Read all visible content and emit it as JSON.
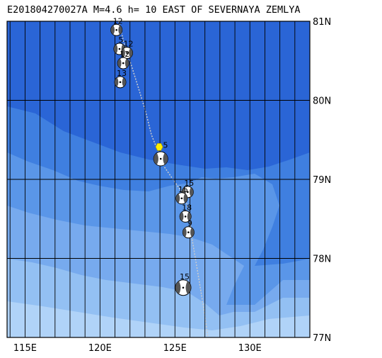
{
  "title": "E201804270027A M=4.6 h= 10 EAST OF SEVERNAYA ZEMLYA",
  "map": {
    "lon_range": [
      113.8,
      134.0
    ],
    "lat_range": [
      77.0,
      81.0
    ],
    "lat_labels": [
      {
        "value": 81,
        "text": "81N"
      },
      {
        "value": 80,
        "text": "80N"
      },
      {
        "value": 79,
        "text": "79N"
      },
      {
        "value": 78,
        "text": "78N"
      },
      {
        "value": 77,
        "text": "77N"
      }
    ],
    "lon_labels": [
      {
        "value": 115,
        "text": "115E"
      },
      {
        "value": 120,
        "text": "120E"
      },
      {
        "value": 125,
        "text": "125E"
      },
      {
        "value": 130,
        "text": "130E"
      }
    ],
    "colors": {
      "deep": "#2a65d6",
      "mid": "#3f7fe0",
      "shelf": "#5a96e8",
      "shallow1": "#77aaee",
      "shallow2": "#93c0f3",
      "coast": "#b0d3f8",
      "grid": "#000000",
      "event": "#ffee00",
      "ridge": "#cccccc"
    },
    "event": {
      "lon": 123.95,
      "lat": 79.41,
      "label": "5"
    },
    "mechanisms": [
      {
        "lon": 121.1,
        "lat": 80.89,
        "label": "12"
      },
      {
        "lon": 121.3,
        "lat": 80.65,
        "label": "5"
      },
      {
        "lon": 121.8,
        "lat": 80.6,
        "label": "12"
      },
      {
        "lon": 121.55,
        "lat": 80.47,
        "label": "12"
      },
      {
        "lon": 121.35,
        "lat": 80.23,
        "label": "13"
      },
      {
        "lon": 124.05,
        "lat": 79.26,
        "label": ""
      },
      {
        "lon": 125.85,
        "lat": 78.84,
        "label": "15"
      },
      {
        "lon": 125.45,
        "lat": 78.76,
        "label": "15"
      },
      {
        "lon": 125.7,
        "lat": 78.53,
        "label": "18"
      },
      {
        "lon": 125.9,
        "lat": 78.33,
        "label": "9"
      },
      {
        "lon": 125.55,
        "lat": 77.63,
        "label": "15"
      }
    ]
  }
}
